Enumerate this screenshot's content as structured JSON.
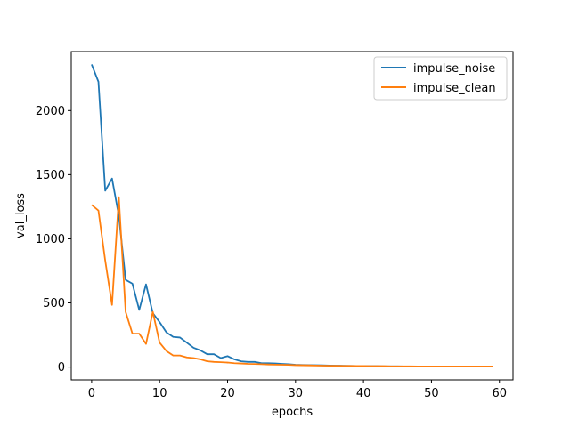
{
  "chart_data": {
    "type": "line",
    "title": "",
    "xlabel": "epochs",
    "ylabel": "val_loss",
    "xlim": [
      -3,
      62
    ],
    "ylim": [
      -100,
      2460
    ],
    "x_ticks": [
      0,
      10,
      20,
      30,
      40,
      50,
      60
    ],
    "y_ticks": [
      0,
      500,
      1000,
      1500,
      2000
    ],
    "grid": false,
    "legend_position": "top-right",
    "x": [
      0,
      1,
      2,
      3,
      4,
      5,
      6,
      7,
      8,
      9,
      10,
      11,
      12,
      13,
      14,
      15,
      16,
      17,
      18,
      19,
      20,
      21,
      22,
      23,
      24,
      25,
      26,
      27,
      28,
      29,
      30,
      31,
      32,
      33,
      34,
      35,
      36,
      37,
      38,
      39,
      40,
      41,
      42,
      43,
      44,
      45,
      46,
      47,
      48,
      49,
      50,
      51,
      52,
      53,
      54,
      55,
      56,
      57,
      58,
      59
    ],
    "series": [
      {
        "name": "impulse_noise",
        "color": "#1f77b4",
        "values": [
          2360,
          2225,
          1375,
          1470,
          1180,
          680,
          650,
          445,
          645,
          420,
          350,
          270,
          235,
          230,
          190,
          150,
          130,
          100,
          100,
          70,
          85,
          60,
          45,
          40,
          40,
          30,
          30,
          28,
          25,
          22,
          18,
          16,
          15,
          14,
          13,
          12,
          11,
          10,
          9,
          8,
          8,
          7,
          7,
          6,
          6,
          6,
          5,
          5,
          5,
          5,
          5,
          4,
          4,
          4,
          4,
          4,
          4,
          4,
          4,
          4
        ]
      },
      {
        "name": "impulse_clean",
        "color": "#ff7f0e",
        "values": [
          1265,
          1220,
          830,
          485,
          1325,
          430,
          260,
          260,
          180,
          430,
          190,
          125,
          90,
          90,
          75,
          70,
          60,
          45,
          40,
          38,
          35,
          30,
          28,
          25,
          24,
          22,
          20,
          19,
          18,
          17,
          15,
          14,
          13,
          12,
          11,
          10,
          10,
          9,
          9,
          8,
          8,
          7,
          7,
          7,
          6,
          6,
          6,
          6,
          5,
          5,
          5,
          5,
          5,
          5,
          5,
          5,
          5,
          5,
          5,
          5
        ]
      }
    ]
  }
}
